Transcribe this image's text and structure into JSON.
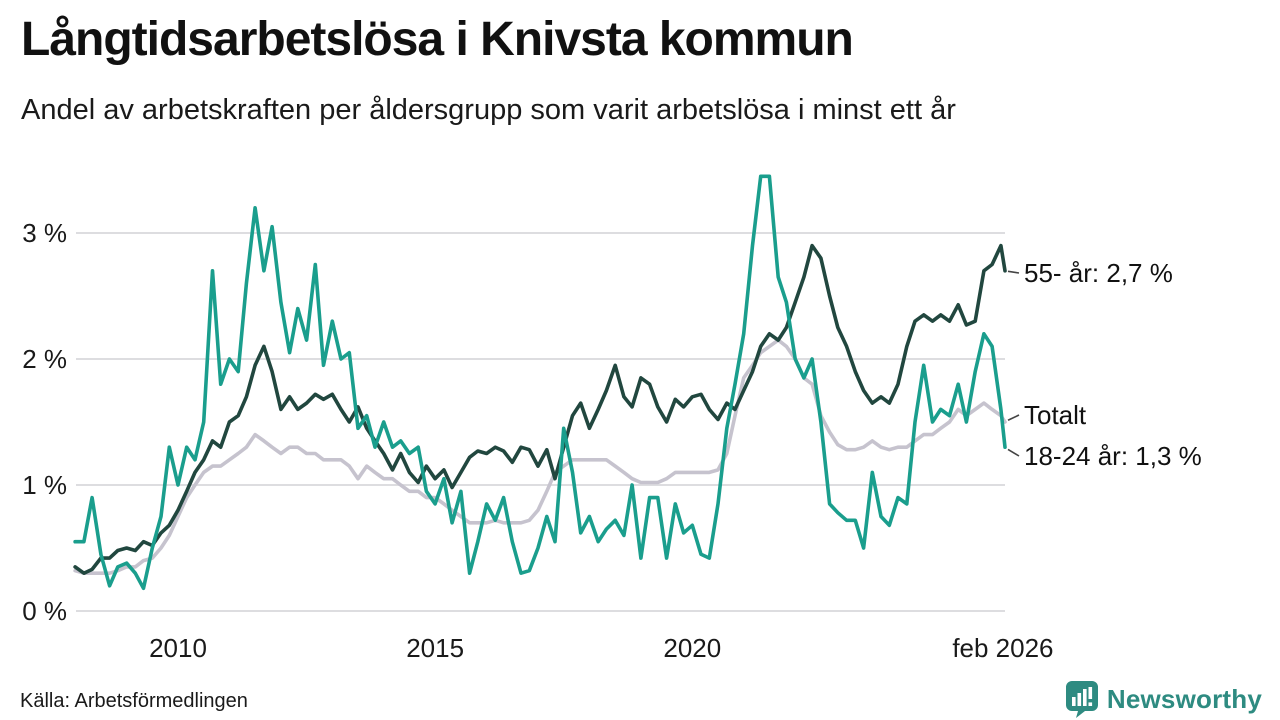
{
  "header": {
    "title": "Långtidsarbetslösa i Knivsta kommun",
    "subtitle": "Andel av arbetskraften per åldersgrupp som varit arbetslösa i minst ett år"
  },
  "footer": {
    "source": "Källa: Arbetsförmedlingen",
    "brand": "Newsworthy"
  },
  "colors": {
    "line_55": "#21473f",
    "line_total": "#c6c3ce",
    "line_1824": "#1a9e8d",
    "gridline": "#dddde0",
    "text": "#1a1a1a",
    "brand_teal": "#2e8b81"
  },
  "chart_data": {
    "type": "line",
    "title": "Långtidsarbetslösa i Knivsta kommun",
    "subtitle": "Andel av arbetskraften per åldersgrupp som varit arbetslösa i minst ett år",
    "xlabel": "",
    "ylabel": "",
    "unit": "%",
    "grid": true,
    "legend_position": "end-of-line-labels",
    "xlim": [
      2008.0,
      2026.15
    ],
    "ylim": [
      0,
      3.6
    ],
    "y_ticks": [
      0,
      1,
      2,
      3
    ],
    "y_tick_labels": [
      "0 %",
      "1 %",
      "2 %",
      "3 %"
    ],
    "x_tick_positions": [
      2010,
      2015,
      2020,
      2026.04
    ],
    "x_tick_labels": [
      "2010",
      "2015",
      "2020",
      "feb 2026"
    ],
    "x": [
      2008.0,
      2008.17,
      2008.33,
      2008.5,
      2008.67,
      2008.83,
      2009.0,
      2009.17,
      2009.33,
      2009.5,
      2009.67,
      2009.83,
      2010.0,
      2010.17,
      2010.33,
      2010.5,
      2010.67,
      2010.83,
      2011.0,
      2011.17,
      2011.33,
      2011.5,
      2011.67,
      2011.83,
      2012.0,
      2012.17,
      2012.33,
      2012.5,
      2012.67,
      2012.83,
      2013.0,
      2013.17,
      2013.33,
      2013.5,
      2013.67,
      2013.83,
      2014.0,
      2014.17,
      2014.33,
      2014.5,
      2014.67,
      2014.83,
      2015.0,
      2015.17,
      2015.33,
      2015.5,
      2015.67,
      2015.83,
      2016.0,
      2016.17,
      2016.33,
      2016.5,
      2016.67,
      2016.83,
      2017.0,
      2017.17,
      2017.33,
      2017.5,
      2017.67,
      2017.83,
      2018.0,
      2018.17,
      2018.33,
      2018.5,
      2018.67,
      2018.83,
      2019.0,
      2019.17,
      2019.33,
      2019.5,
      2019.67,
      2019.83,
      2020.0,
      2020.17,
      2020.33,
      2020.5,
      2020.67,
      2020.83,
      2021.0,
      2021.17,
      2021.33,
      2021.5,
      2021.67,
      2021.83,
      2022.0,
      2022.17,
      2022.33,
      2022.5,
      2022.67,
      2022.83,
      2023.0,
      2023.17,
      2023.33,
      2023.5,
      2023.67,
      2023.83,
      2024.0,
      2024.17,
      2024.33,
      2024.5,
      2024.67,
      2024.83,
      2025.0,
      2025.17,
      2025.33,
      2025.5,
      2025.67,
      2025.83,
      2026.0,
      2026.08
    ],
    "series": [
      {
        "name": "Totalt",
        "end_label": "Totalt",
        "end_value": 1.5,
        "color": "#c6c3ce",
        "values": [
          0.32,
          0.3,
          0.3,
          0.3,
          0.3,
          0.32,
          0.35,
          0.35,
          0.4,
          0.42,
          0.5,
          0.6,
          0.75,
          0.9,
          1.0,
          1.1,
          1.15,
          1.15,
          1.2,
          1.25,
          1.3,
          1.4,
          1.35,
          1.3,
          1.25,
          1.3,
          1.3,
          1.25,
          1.25,
          1.2,
          1.2,
          1.2,
          1.15,
          1.05,
          1.15,
          1.1,
          1.05,
          1.05,
          1.0,
          0.95,
          0.95,
          0.9,
          0.9,
          0.85,
          0.8,
          0.75,
          0.7,
          0.7,
          0.7,
          0.72,
          0.7,
          0.7,
          0.7,
          0.72,
          0.8,
          0.95,
          1.1,
          1.15,
          1.2,
          1.2,
          1.2,
          1.2,
          1.2,
          1.15,
          1.1,
          1.05,
          1.02,
          1.02,
          1.02,
          1.05,
          1.1,
          1.1,
          1.1,
          1.1,
          1.1,
          1.12,
          1.25,
          1.55,
          1.85,
          1.95,
          2.05,
          2.1,
          2.15,
          2.1,
          2.0,
          1.85,
          1.8,
          1.55,
          1.42,
          1.32,
          1.28,
          1.28,
          1.3,
          1.35,
          1.3,
          1.28,
          1.3,
          1.3,
          1.35,
          1.4,
          1.4,
          1.45,
          1.5,
          1.6,
          1.55,
          1.6,
          1.65,
          1.6,
          1.55,
          1.5
        ]
      },
      {
        "name": "55- år",
        "end_label": "55- år: 2,7 %",
        "end_value": 2.7,
        "color": "#21473f",
        "values": [
          0.35,
          0.3,
          0.33,
          0.42,
          0.42,
          0.48,
          0.5,
          0.48,
          0.55,
          0.52,
          0.62,
          0.68,
          0.8,
          0.95,
          1.1,
          1.2,
          1.35,
          1.3,
          1.5,
          1.55,
          1.7,
          1.95,
          2.1,
          1.9,
          1.6,
          1.7,
          1.6,
          1.65,
          1.72,
          1.68,
          1.72,
          1.6,
          1.5,
          1.62,
          1.45,
          1.35,
          1.25,
          1.12,
          1.25,
          1.1,
          1.02,
          1.15,
          1.05,
          1.12,
          0.98,
          1.1,
          1.22,
          1.27,
          1.25,
          1.3,
          1.27,
          1.18,
          1.3,
          1.28,
          1.15,
          1.28,
          1.05,
          1.3,
          1.55,
          1.65,
          1.45,
          1.6,
          1.75,
          1.95,
          1.7,
          1.62,
          1.85,
          1.8,
          1.62,
          1.5,
          1.68,
          1.62,
          1.7,
          1.72,
          1.6,
          1.52,
          1.65,
          1.6,
          1.75,
          1.9,
          2.1,
          2.2,
          2.15,
          2.25,
          2.45,
          2.65,
          2.9,
          2.8,
          2.5,
          2.25,
          2.1,
          1.9,
          1.75,
          1.65,
          1.7,
          1.65,
          1.8,
          2.1,
          2.3,
          2.35,
          2.3,
          2.35,
          2.3,
          2.43,
          2.27,
          2.3,
          2.7,
          2.75,
          2.9,
          2.7
        ]
      },
      {
        "name": "18-24 år",
        "end_label": "18-24 år: 1,3 %",
        "end_value": 1.3,
        "color": "#1a9e8d",
        "values": [
          0.55,
          0.55,
          0.9,
          0.45,
          0.2,
          0.35,
          0.38,
          0.3,
          0.18,
          0.5,
          0.75,
          1.3,
          1.0,
          1.3,
          1.2,
          1.5,
          2.7,
          1.8,
          2.0,
          1.9,
          2.6,
          3.2,
          2.7,
          3.05,
          2.45,
          2.05,
          2.4,
          2.15,
          2.75,
          1.95,
          2.3,
          2.0,
          2.05,
          1.45,
          1.55,
          1.3,
          1.5,
          1.3,
          1.35,
          1.25,
          1.3,
          0.95,
          0.85,
          1.05,
          0.7,
          0.95,
          0.3,
          0.55,
          0.85,
          0.72,
          0.9,
          0.55,
          0.3,
          0.32,
          0.5,
          0.75,
          0.55,
          1.45,
          1.1,
          0.62,
          0.75,
          0.55,
          0.65,
          0.72,
          0.6,
          1.0,
          0.42,
          0.9,
          0.9,
          0.42,
          0.85,
          0.62,
          0.68,
          0.45,
          0.42,
          0.85,
          1.45,
          1.8,
          2.2,
          2.9,
          3.45,
          3.45,
          2.65,
          2.45,
          2.0,
          1.85,
          2.0,
          1.5,
          0.85,
          0.78,
          0.72,
          0.72,
          0.5,
          1.1,
          0.75,
          0.68,
          0.9,
          0.85,
          1.5,
          1.95,
          1.5,
          1.6,
          1.55,
          1.8,
          1.5,
          1.9,
          2.2,
          2.1,
          1.6,
          1.3
        ]
      }
    ]
  }
}
